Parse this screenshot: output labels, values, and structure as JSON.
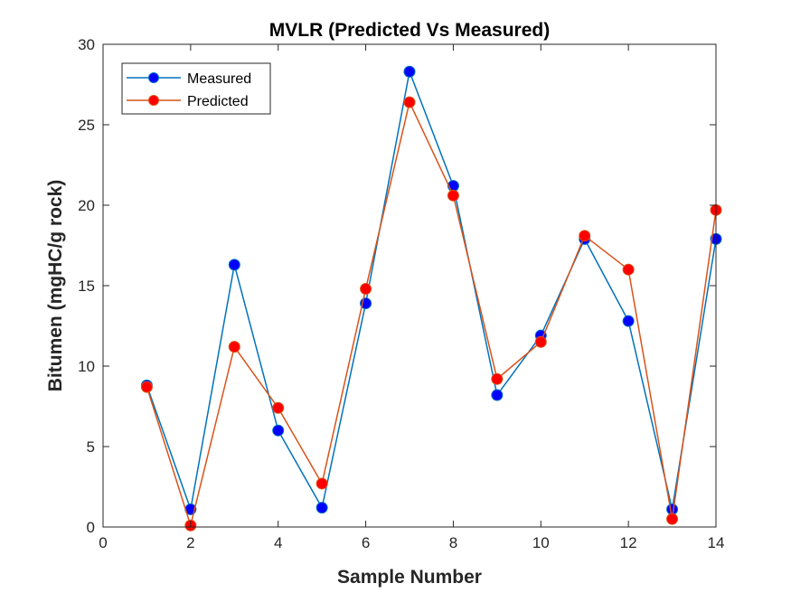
{
  "chart_data": {
    "type": "line",
    "title": "MVLR (Predicted Vs Measured)",
    "xlabel": "Sample Number",
    "ylabel": "Bitumen (mgHC/g rock)",
    "xlim": [
      0,
      14
    ],
    "ylim": [
      0,
      30
    ],
    "xticks": [
      0,
      2,
      4,
      6,
      8,
      10,
      12,
      14
    ],
    "yticks": [
      0,
      5,
      10,
      15,
      20,
      25,
      30
    ],
    "grid": false,
    "legend_position": "top-left",
    "x": [
      1,
      2,
      3,
      4,
      5,
      6,
      7,
      8,
      9,
      10,
      11,
      12,
      13,
      14
    ],
    "series": [
      {
        "name": "Measured",
        "line_color": "#0072BD",
        "marker_color": "#0000FF",
        "values": [
          8.8,
          1.1,
          16.3,
          6.0,
          1.2,
          13.9,
          28.3,
          21.2,
          8.2,
          11.9,
          17.9,
          12.8,
          1.1,
          17.9
        ]
      },
      {
        "name": "Predicted",
        "line_color": "#D95319",
        "marker_color": "#FF0000",
        "values": [
          8.7,
          0.1,
          11.2,
          7.4,
          2.7,
          14.8,
          26.4,
          20.6,
          9.2,
          11.5,
          18.1,
          16.0,
          0.5,
          19.7
        ]
      }
    ]
  }
}
